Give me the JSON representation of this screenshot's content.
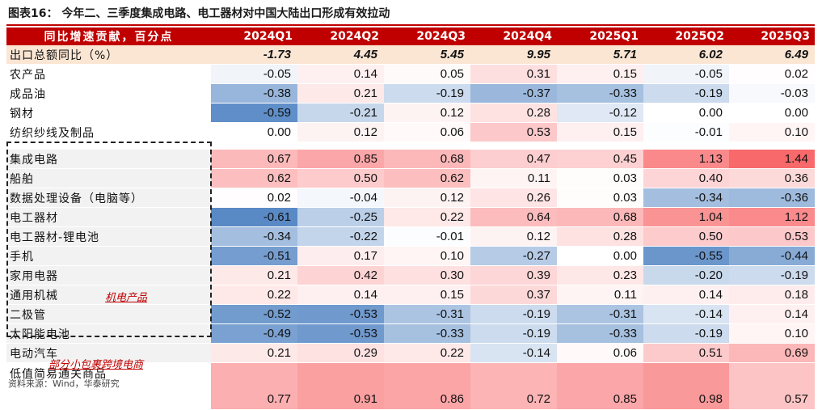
{
  "title": "图表16：  今年二、三季度集成电路、电工器材对中国大陆出口形成有效拉动",
  "source": "资料来源：Wind，华泰研究",
  "annotations": {
    "group_label": "机电产品",
    "parcel_label": "部分小包裹跨境电商"
  },
  "colors": {
    "header_bg": "#c00000",
    "total_bg": "#fbe6d4",
    "positive": "#f8696b",
    "negative": "#5a8ac6",
    "neutral": "#ffffff"
  },
  "chart_data": {
    "type": "heatmap",
    "header_label": "同比增速贡献，百分点",
    "columns": [
      "2024Q1",
      "2024Q2",
      "2024Q3",
      "2024Q4",
      "2025Q1",
      "2025Q2",
      "2025Q3"
    ],
    "scale": {
      "min": -0.61,
      "max": 1.44
    },
    "total": {
      "label": "出口总额同比（%）",
      "values": [
        "-1.73",
        "4.45",
        "5.45",
        "9.95",
        "5.71",
        "6.02",
        "6.49"
      ]
    },
    "rows": [
      {
        "label": "农产品",
        "values": [
          "-0.05",
          "0.14",
          "0.05",
          "0.31",
          "0.15",
          "-0.05",
          "0.02"
        ]
      },
      {
        "label": "成品油",
        "values": [
          "-0.38",
          "0.21",
          "-0.19",
          "-0.37",
          "-0.33",
          "-0.19",
          "-0.03"
        ]
      },
      {
        "label": "钢材",
        "values": [
          "-0.59",
          "-0.21",
          "0.12",
          "0.28",
          "-0.12",
          "0.00",
          "0.00"
        ]
      },
      {
        "label": "纺织纱线及制品",
        "values": [
          "0.00",
          "0.12",
          "0.06",
          "0.53",
          "0.15",
          "-0.01",
          "0.10"
        ]
      },
      {
        "label": "集成电路",
        "values": [
          "0.67",
          "0.85",
          "0.68",
          "0.47",
          "0.45",
          "1.13",
          "1.44"
        ]
      },
      {
        "label": "船舶",
        "values": [
          "0.62",
          "0.50",
          "0.62",
          "0.11",
          "0.03",
          "0.40",
          "0.36"
        ]
      },
      {
        "label": "数据处理设备（电脑等）",
        "values": [
          "0.02",
          "-0.04",
          "0.12",
          "0.26",
          "0.03",
          "-0.34",
          "-0.36"
        ]
      },
      {
        "label": "电工器材",
        "values": [
          "-0.61",
          "-0.25",
          "0.22",
          "0.64",
          "0.68",
          "1.04",
          "1.12"
        ]
      },
      {
        "label": "电工器材-锂电池",
        "values": [
          "-0.34",
          "-0.22",
          "-0.01",
          "0.12",
          "0.28",
          "0.50",
          "0.53"
        ]
      },
      {
        "label": "手机",
        "values": [
          "-0.51",
          "0.17",
          "0.10",
          "-0.27",
          "0.00",
          "-0.55",
          "-0.44"
        ]
      },
      {
        "label": "家用电器",
        "values": [
          "0.21",
          "0.42",
          "0.30",
          "0.39",
          "0.23",
          "-0.20",
          "-0.19"
        ]
      },
      {
        "label": "通用机械",
        "values": [
          "0.22",
          "0.14",
          "0.15",
          "0.37",
          "0.11",
          "0.14",
          "0.18"
        ]
      },
      {
        "label": "二极管",
        "values": [
          "-0.52",
          "-0.53",
          "-0.31",
          "-0.19",
          "-0.31",
          "-0.14",
          "0.14"
        ]
      },
      {
        "label": "太阳能电池",
        "values": [
          "-0.49",
          "-0.53",
          "-0.33",
          "-0.19",
          "-0.33",
          "-0.19",
          "0.10"
        ]
      },
      {
        "label": "电动汽车",
        "values": [
          "0.21",
          "0.29",
          "0.22",
          "-0.14",
          "0.06",
          "0.51",
          "0.69"
        ]
      },
      {
        "label": "低值简易通关商品",
        "values": [
          "0.77",
          "0.91",
          "0.86",
          "0.72",
          "0.85",
          "0.98",
          "0.57"
        ]
      }
    ]
  }
}
